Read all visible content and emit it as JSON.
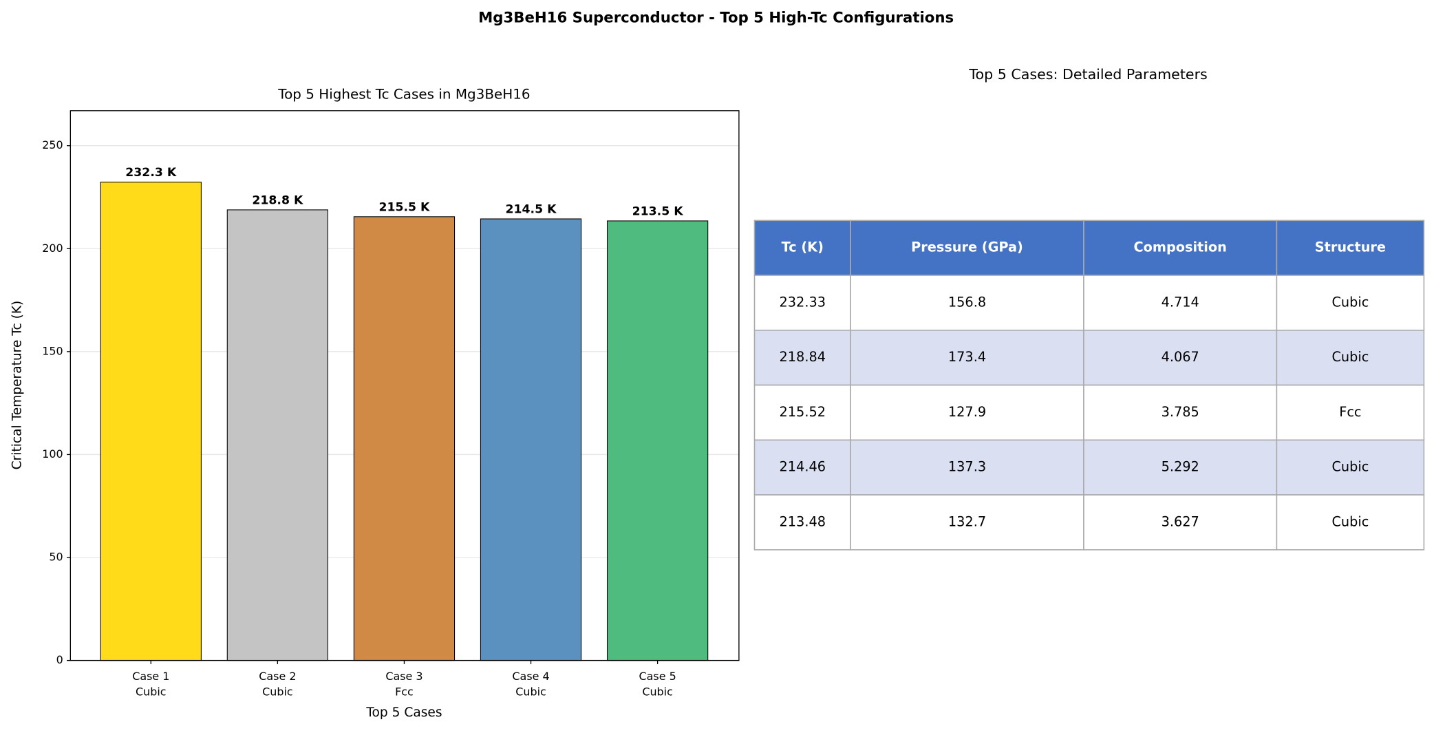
{
  "title": "Mg3BeH16 Superconductor - Top 5 High-Tc Configurations",
  "chart_data": {
    "type": "bar",
    "title": "Top 5 Highest Tc Cases in Mg3BeH16",
    "x_label": "Top 5 Cases",
    "y_label": "Critical Temperature Tc (K)",
    "categories": [
      [
        "Case 1",
        "Cubic"
      ],
      [
        "Case 2",
        "Cubic"
      ],
      [
        "Case 3",
        "Fcc"
      ],
      [
        "Case 4",
        "Cubic"
      ],
      [
        "Case 5",
        "Cubic"
      ]
    ],
    "values": [
      232.33,
      218.84,
      215.52,
      214.46,
      213.48
    ],
    "value_labels": [
      "232.3 K",
      "218.8 K",
      "215.5 K",
      "214.5 K",
      "213.5 K"
    ],
    "colors": [
      "#ffdb1a",
      "#c4c4c4",
      "#d08a45",
      "#5a91bf",
      "#4fbb7e"
    ],
    "ylim": [
      0,
      267
    ],
    "yticks": [
      0,
      50,
      100,
      150,
      200,
      250
    ],
    "grid": true
  },
  "table": {
    "title": "Top 5 Cases: Detailed Parameters",
    "columns": [
      "Tc (K)",
      "Pressure (GPa)",
      "Composition",
      "Structure"
    ],
    "rows": [
      [
        232.33,
        156.8,
        4.714,
        "Cubic"
      ],
      [
        218.84,
        173.4,
        4.067,
        "Cubic"
      ],
      [
        215.52,
        127.9,
        3.785,
        "Fcc"
      ],
      [
        214.46,
        137.3,
        5.292,
        "Cubic"
      ],
      [
        213.48,
        132.7,
        3.627,
        "Cubic"
      ]
    ]
  }
}
